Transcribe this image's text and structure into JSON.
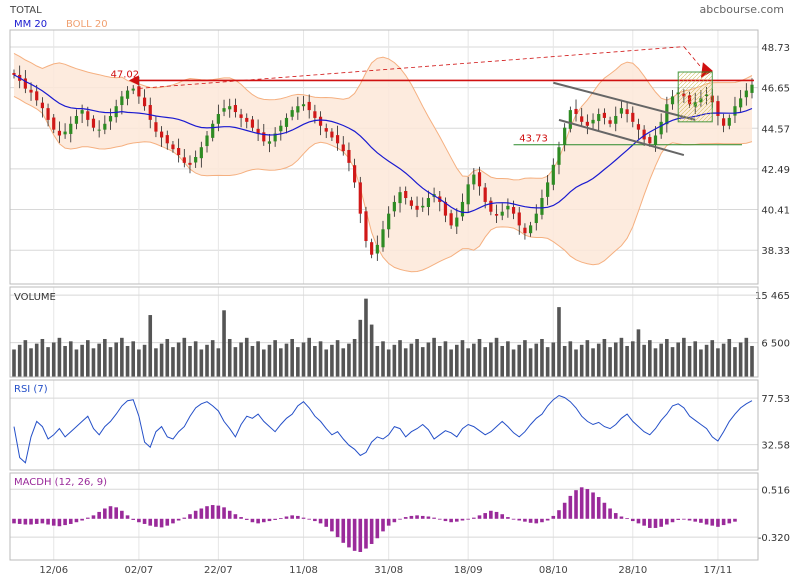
{
  "header": {
    "title": "TOTAL",
    "source": "abcbourse.com"
  },
  "colors": {
    "up": "#2e8b23",
    "down": "#d01818",
    "ma": "#1a1ad0",
    "band": "#f5b080",
    "band_fill": "#fde8d8",
    "rsi": "#2550c8",
    "macd": "#9a2a9a",
    "volume": "#555555",
    "grid": "#d8d8d8",
    "resistance": "#d01010",
    "support": "#2a8a2a",
    "channel": "#666666"
  },
  "chart_data": [
    {
      "type": "candlestick",
      "title": "TOTAL",
      "legend": [
        {
          "name": "MM 20",
          "color": "#1a1ad0"
        },
        {
          "name": "BOLL 20",
          "color": "#f5b080"
        }
      ],
      "ylim": [
        36.6,
        49.6
      ],
      "y_ticks": [
        48.73,
        46.65,
        44.57,
        42.49,
        40.41,
        38.33
      ],
      "x_ticks": [
        "12/06",
        "02/07",
        "22/07",
        "11/08",
        "31/08",
        "18/09",
        "08/10",
        "28/10",
        "17/11"
      ],
      "annotations": {
        "resistance": 47.02,
        "support": 43.73
      },
      "close": [
        47.3,
        47.0,
        46.6,
        46.4,
        46.0,
        45.6,
        45.0,
        44.5,
        44.2,
        44.4,
        44.8,
        45.2,
        45.5,
        45.0,
        44.6,
        44.5,
        44.8,
        45.2,
        45.7,
        46.2,
        46.5,
        46.6,
        46.2,
        45.7,
        45.0,
        44.4,
        44.1,
        43.8,
        43.5,
        43.2,
        42.8,
        42.7,
        43.1,
        43.6,
        44.2,
        44.8,
        45.3,
        45.6,
        45.7,
        45.4,
        45.1,
        44.9,
        44.6,
        44.3,
        43.9,
        43.9,
        44.3,
        44.7,
        45.1,
        45.5,
        45.7,
        45.8,
        45.5,
        45.1,
        44.7,
        44.4,
        44.1,
        43.8,
        43.4,
        42.8,
        41.8,
        40.2,
        38.8,
        38.1,
        38.6,
        39.4,
        40.2,
        40.8,
        41.3,
        41.0,
        40.6,
        40.4,
        40.6,
        41.0,
        41.2,
        40.8,
        40.1,
        39.6,
        40.0,
        40.8,
        41.7,
        42.2,
        41.6,
        40.8,
        40.3,
        40.1,
        40.3,
        40.6,
        40.2,
        39.6,
        39.2,
        39.6,
        40.2,
        41.0,
        41.8,
        42.7,
        43.6,
        44.6,
        45.5,
        45.3,
        44.9,
        44.7,
        45.0,
        45.3,
        45.1,
        44.8,
        45.2,
        45.6,
        45.3,
        44.9,
        44.5,
        44.0,
        43.8,
        44.2,
        44.9,
        45.8,
        46.2,
        46.4,
        46.2,
        45.8,
        45.9,
        46.1,
        46.3,
        45.9,
        45.2,
        44.7,
        45.1,
        45.7,
        46.1,
        46.5,
        46.8
      ],
      "volume_ylim": [
        0,
        17000
      ],
      "volume_ticks": [
        15465,
        6500
      ],
      "volume_tick_labels": [
        "15 465",
        "6 500"
      ],
      "volume_title": "VOLUME",
      "rsi_title": "RSI (7)",
      "rsi_ylim": [
        8,
        95
      ],
      "rsi_ticks": [
        77.53,
        32.58
      ],
      "rsi": [
        50,
        20,
        15,
        40,
        55,
        50,
        38,
        42,
        48,
        40,
        45,
        50,
        55,
        60,
        48,
        42,
        50,
        55,
        62,
        70,
        75,
        76,
        60,
        35,
        30,
        45,
        50,
        40,
        38,
        45,
        50,
        60,
        68,
        72,
        74,
        70,
        65,
        55,
        48,
        40,
        52,
        60,
        58,
        62,
        55,
        50,
        45,
        52,
        58,
        62,
        70,
        74,
        68,
        60,
        55,
        48,
        42,
        45,
        38,
        32,
        28,
        22,
        25,
        35,
        40,
        38,
        42,
        50,
        48,
        40,
        45,
        48,
        52,
        47,
        38,
        42,
        46,
        44,
        40,
        48,
        52,
        50,
        46,
        42,
        45,
        50,
        55,
        50,
        44,
        40,
        45,
        52,
        58,
        62,
        70,
        76,
        80,
        78,
        74,
        68,
        60,
        55,
        52,
        54,
        50,
        48,
        52,
        58,
        62,
        55,
        50,
        45,
        42,
        48,
        56,
        62,
        70,
        72,
        68,
        60,
        56,
        52,
        48,
        40,
        36,
        45,
        55,
        62,
        68,
        72,
        75
      ],
      "macd_title": "MACDH (12, 26, 9)",
      "macd_ylim": [
        -0.72,
        0.8
      ],
      "macd_ticks": [
        0.516,
        -0.32
      ],
      "macd_tick_labels": [
        "0.516",
        "-0.320"
      ],
      "macd": [
        -0.08,
        -0.09,
        -0.1,
        -0.1,
        -0.09,
        -0.08,
        -0.1,
        -0.12,
        -0.13,
        -0.11,
        -0.09,
        -0.06,
        -0.03,
        0.02,
        0.06,
        0.12,
        0.18,
        0.22,
        0.2,
        0.14,
        0.06,
        -0.02,
        -0.06,
        -0.09,
        -0.12,
        -0.14,
        -0.15,
        -0.12,
        -0.08,
        -0.03,
        0.02,
        0.08,
        0.14,
        0.18,
        0.22,
        0.24,
        0.23,
        0.2,
        0.14,
        0.08,
        0.03,
        -0.02,
        -0.06,
        -0.08,
        -0.06,
        -0.04,
        -0.02,
        0.01,
        0.04,
        0.06,
        0.05,
        0.02,
        -0.01,
        -0.04,
        -0.08,
        -0.14,
        -0.22,
        -0.32,
        -0.42,
        -0.5,
        -0.56,
        -0.58,
        -0.52,
        -0.44,
        -0.34,
        -0.22,
        -0.12,
        -0.06,
        -0.01,
        0.03,
        0.05,
        0.06,
        0.05,
        0.04,
        0.02,
        -0.01,
        -0.04,
        -0.06,
        -0.05,
        -0.03,
        -0.01,
        0.02,
        0.06,
        0.1,
        0.14,
        0.12,
        0.08,
        0.03,
        -0.01,
        -0.03,
        -0.05,
        -0.07,
        -0.08,
        -0.06,
        -0.03,
        0.05,
        0.15,
        0.28,
        0.4,
        0.5,
        0.55,
        0.52,
        0.46,
        0.38,
        0.28,
        0.18,
        0.1,
        0.04,
        0.01,
        -0.04,
        -0.08,
        -0.12,
        -0.16,
        -0.16,
        -0.14,
        -0.1,
        -0.06,
        -0.02,
        -0.01,
        -0.03,
        -0.05,
        -0.07,
        -0.1,
        -0.12,
        -0.14,
        -0.11,
        -0.08,
        -0.05
      ]
    }
  ]
}
